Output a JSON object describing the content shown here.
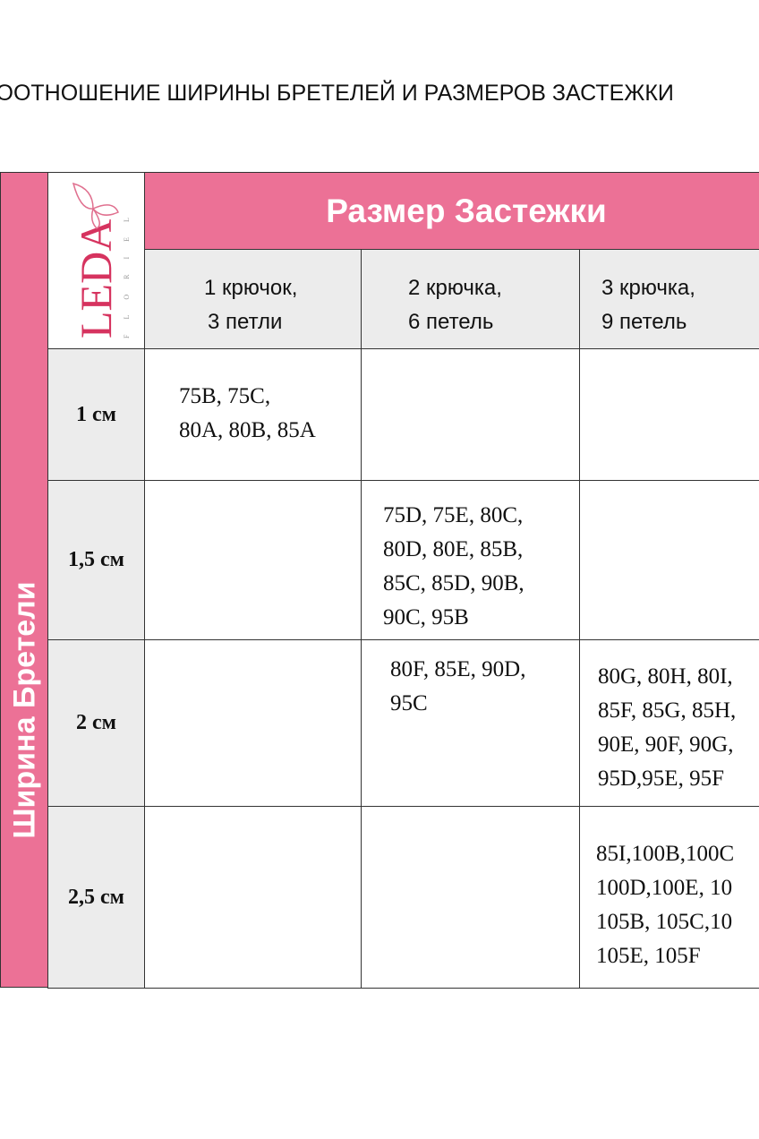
{
  "title": "СООТНОШЕНИЕ ШИРИНЫ БРЕТЕЛЕЙ И РАЗМЕРОВ ЗАСТЕЖКИ",
  "side_label": "Ширина Бретели",
  "logo": {
    "text": "LEDA",
    "sub": "FLORIEL",
    "icon": "butterfly-icon",
    "color": "#d6335f"
  },
  "header": "Размер Застежки",
  "columns": [
    [
      "1 крючок,",
      "3 петли"
    ],
    [
      "2 крючка,",
      "6 петель"
    ],
    [
      "3 крючка,",
      "9 петель"
    ]
  ],
  "rows": [
    {
      "label": "1 см",
      "cells": [
        [
          "75B, 75C,",
          "80A, 80B, 85A"
        ],
        [],
        []
      ]
    },
    {
      "label": "1,5 см",
      "cells": [
        [],
        [
          "75D, 75E, 80C,",
          "80D, 80E, 85B,",
          "85C, 85D, 90B,",
          "90C, 95B"
        ],
        []
      ]
    },
    {
      "label": "2 см",
      "cells": [
        [],
        [
          "80F, 85E, 90D,",
          "95C"
        ],
        [
          "80G, 80H, 80I,",
          "85F, 85G, 85H,",
          "90E, 90F, 90G,",
          "95D,95E, 95F"
        ]
      ]
    },
    {
      "label": "2,5 см",
      "cells": [
        [],
        [],
        [
          "85I,100B,100C",
          "100D,100E, 10",
          "105B, 105C,10",
          "105E, 105F"
        ]
      ]
    }
  ],
  "colors": {
    "pink": "#ec7196",
    "gray": "#ececec"
  }
}
